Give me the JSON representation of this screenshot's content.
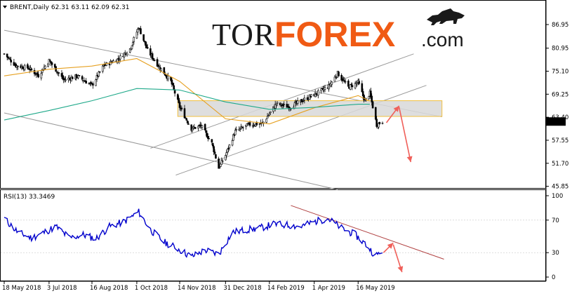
{
  "header": {
    "symbol_line": "BRENT,Daily  62.31 63.11 62.09 62.31",
    "rsi_line": "RSI(13) 33.3469"
  },
  "logo": {
    "part1": "TOR",
    "part2": "FOREX",
    "part3": ".com",
    "accent_color": "#f05a14"
  },
  "colors": {
    "candle": "#000000",
    "ma_fast": "#e6a020",
    "ma_slow": "#1fa98a",
    "rsi_line": "#0000cc",
    "channel": "#9a9a9a",
    "forecast_arrow": "#f0605a",
    "zone_fill": "#d8d8d8",
    "zone_border": "#f0c040",
    "rsi_trend": "#b04040",
    "price_tag_bg": "#000000"
  },
  "chart_data": [
    {
      "type": "candlestick",
      "title": "BRENT,Daily",
      "ohlc_last": {
        "open": 62.31,
        "high": 63.11,
        "low": 62.09,
        "close": 62.31
      },
      "current_price_label": "62.31",
      "y_ticks": [
        "86.95",
        "80.95",
        "75.10",
        "69.25",
        "63.40",
        "57.55",
        "51.70",
        "45.85"
      ],
      "ylim": [
        45.85,
        89.8
      ],
      "x_ticks": [
        "18 May 2018",
        "3 Jul 2018",
        "16 Aug 2018",
        "1 Oct 2018",
        "14 Nov 2018",
        "31 Dec 2018",
        "14 Feb 2019",
        "1 Apr 2019",
        "16 May 2019"
      ],
      "close_path": [
        [
          "2018-05-18",
          79.5
        ],
        [
          "2018-05-30",
          76.5
        ],
        [
          "2018-06-12",
          75.9
        ],
        [
          "2018-06-22",
          74.0
        ],
        [
          "2018-07-03",
          77.8
        ],
        [
          "2018-07-18",
          72.9
        ],
        [
          "2018-08-01",
          73.8
        ],
        [
          "2018-08-16",
          71.5
        ],
        [
          "2018-08-28",
          76.5
        ],
        [
          "2018-09-12",
          78.2
        ],
        [
          "2018-09-24",
          80.8
        ],
        [
          "2018-10-03",
          86.3
        ],
        [
          "2018-10-12",
          80.4
        ],
        [
          "2018-10-24",
          76.2
        ],
        [
          "2018-11-05",
          72.5
        ],
        [
          "2018-11-14",
          66.0
        ],
        [
          "2018-11-26",
          60.5
        ],
        [
          "2018-12-06",
          61.2
        ],
        [
          "2018-12-17",
          56.8
        ],
        [
          "2018-12-24",
          50.5
        ],
        [
          "2018-12-31",
          53.8
        ],
        [
          "2019-01-10",
          59.8
        ],
        [
          "2019-01-24",
          61.5
        ],
        [
          "2019-02-07",
          61.8
        ],
        [
          "2019-02-21",
          66.8
        ],
        [
          "2019-03-07",
          66.0
        ],
        [
          "2019-03-21",
          67.8
        ],
        [
          "2019-04-04",
          69.5
        ],
        [
          "2019-04-16",
          71.3
        ],
        [
          "2019-04-25",
          74.6
        ],
        [
          "2019-05-06",
          71.0
        ],
        [
          "2019-05-16",
          72.3
        ],
        [
          "2019-05-23",
          67.5
        ],
        [
          "2019-05-28",
          69.5
        ],
        [
          "2019-06-04",
          61.5
        ],
        [
          "2019-06-10",
          62.31
        ]
      ],
      "series": [
        {
          "name": "ma_fast",
          "points": [
            [
              "2018-05-18",
              73.9
            ],
            [
              "2018-07-03",
              75.6
            ],
            [
              "2018-08-16",
              76.4
            ],
            [
              "2018-10-01",
              78.3
            ],
            [
              "2018-11-14",
              72.5
            ],
            [
              "2018-12-31",
              63.0
            ],
            [
              "2019-02-14",
              61.7
            ],
            [
              "2019-04-01",
              65.8
            ],
            [
              "2019-05-16",
              68.9
            ],
            [
              "2019-05-28",
              67.5
            ]
          ]
        },
        {
          "name": "ma_slow",
          "points": [
            [
              "2018-05-18",
              62.7
            ],
            [
              "2018-07-03",
              65.1
            ],
            [
              "2018-08-16",
              67.6
            ],
            [
              "2018-10-01",
              70.7
            ],
            [
              "2018-11-14",
              70.3
            ],
            [
              "2018-12-31",
              67.3
            ],
            [
              "2019-02-14",
              65.4
            ],
            [
              "2019-04-01",
              65.9
            ],
            [
              "2019-05-16",
              66.7
            ],
            [
              "2019-05-28",
              66.7
            ]
          ]
        }
      ]
    },
    {
      "type": "line",
      "title": "RSI(13)",
      "current_value": 33.3469,
      "y_ticks": [
        "100",
        "70",
        "30",
        "0"
      ],
      "ylim": [
        0,
        100
      ],
      "series": [
        {
          "name": "RSI(13)",
          "points": [
            [
              "2018-05-18",
              72
            ],
            [
              "2018-06-01",
              55
            ],
            [
              "2018-06-15",
              48
            ],
            [
              "2018-06-28",
              55
            ],
            [
              "2018-07-10",
              62
            ],
            [
              "2018-07-24",
              48
            ],
            [
              "2018-08-07",
              52
            ],
            [
              "2018-08-20",
              47
            ],
            [
              "2018-09-03",
              62
            ],
            [
              "2018-09-18",
              68
            ],
            [
              "2018-10-03",
              80
            ],
            [
              "2018-10-15",
              58
            ],
            [
              "2018-10-29",
              43
            ],
            [
              "2018-11-12",
              35
            ],
            [
              "2018-11-26",
              25
            ],
            [
              "2018-12-10",
              33
            ],
            [
              "2018-12-24",
              28
            ],
            [
              "2019-01-07",
              55
            ],
            [
              "2019-01-21",
              58
            ],
            [
              "2019-02-04",
              60
            ],
            [
              "2019-02-18",
              65
            ],
            [
              "2019-03-04",
              64
            ],
            [
              "2019-03-18",
              62
            ],
            [
              "2019-04-01",
              68
            ],
            [
              "2019-04-15",
              72
            ],
            [
              "2019-04-29",
              60
            ],
            [
              "2019-05-13",
              52
            ],
            [
              "2019-05-24",
              40
            ],
            [
              "2019-06-03",
              26
            ],
            [
              "2019-06-10",
              33
            ]
          ]
        }
      ]
    }
  ]
}
